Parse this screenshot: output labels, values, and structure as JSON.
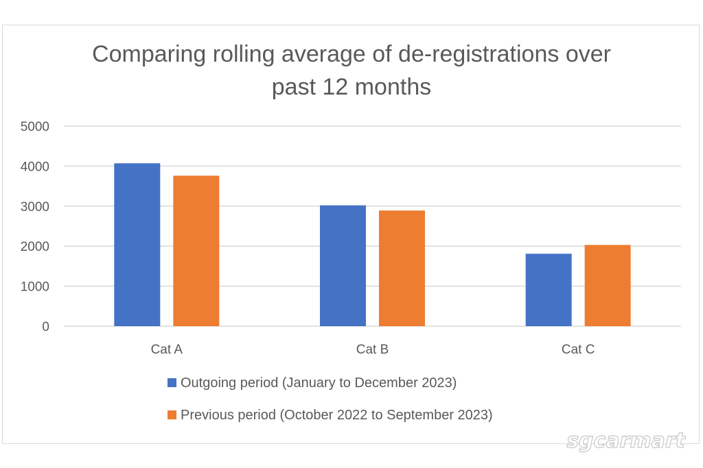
{
  "colors": {
    "outgoing": "#4472C4",
    "previous": "#ED7D31",
    "gridline": "#d9d9d9",
    "text": "#595959"
  },
  "watermark": "sgcarmart",
  "chart_data": {
    "type": "bar",
    "title_lines": [
      "Comparing rolling average of de-registrations over",
      "past 12 months"
    ],
    "categories": [
      "Cat A",
      "Cat B",
      "Cat C"
    ],
    "series": [
      {
        "name": "Outgoing period (January to December 2023)",
        "values": [
          4070,
          3020,
          1810
        ],
        "color": "#4472C4"
      },
      {
        "name": "Previous period (October 2022 to September 2023)",
        "values": [
          3760,
          2890,
          2030
        ],
        "color": "#ED7D31"
      }
    ],
    "ylim": [
      0,
      5000
    ],
    "yticks": [
      "5000",
      "4000",
      "3000",
      "2000",
      "1000",
      "0"
    ],
    "grid": true,
    "legend_position": "bottom",
    "xlabel": "",
    "ylabel": ""
  }
}
